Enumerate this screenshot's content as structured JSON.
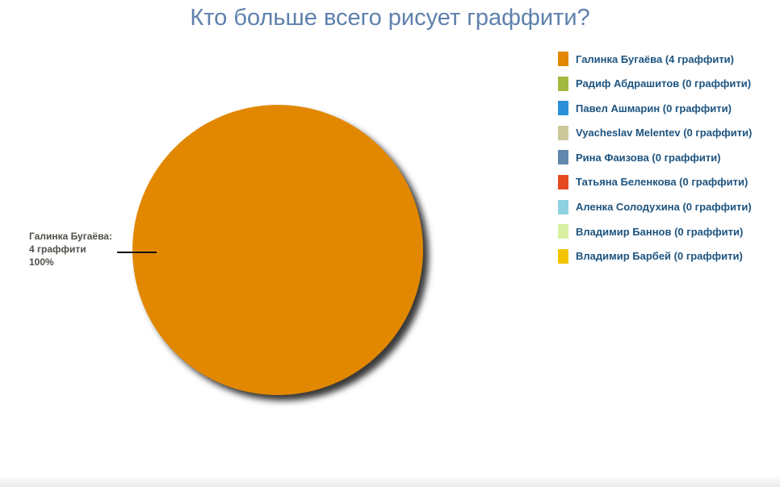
{
  "page": {
    "title": "Кто больше всего рисует граффити?"
  },
  "chart_data": {
    "type": "pie",
    "title": "Кто больше всего рисует граффити?",
    "unit": "граффити",
    "legend_position": "right",
    "total": 4,
    "series": [
      {
        "name": "Галинка Бугаёва",
        "value": 4,
        "percent": 100,
        "color": "#E28800"
      },
      {
        "name": "Радиф Абдрашитов",
        "value": 0,
        "percent": 0,
        "color": "#A4B93F"
      },
      {
        "name": "Павел Ашмарин",
        "value": 0,
        "percent": 0,
        "color": "#2B90D9"
      },
      {
        "name": "Vyacheslav Melentev",
        "value": 0,
        "percent": 0,
        "color": "#CDC89B"
      },
      {
        "name": "Рина Фаизова",
        "value": 0,
        "percent": 0,
        "color": "#6187AD"
      },
      {
        "name": "Татьяна Беленкова",
        "value": 0,
        "percent": 0,
        "color": "#E54A21"
      },
      {
        "name": "Аленка Солодухина",
        "value": 0,
        "percent": 0,
        "color": "#8ED1E1"
      },
      {
        "name": "Владимир Баннов",
        "value": 0,
        "percent": 0,
        "color": "#D9F0A3"
      },
      {
        "name": "Владимир Барбей",
        "value": 0,
        "percent": 0,
        "color": "#F2C500"
      }
    ]
  },
  "legend": {
    "items": [
      {
        "label": "Галинка Бугаёва (4 граффити)",
        "color": "#E28800"
      },
      {
        "label": "Радиф Абдрашитов (0 граффити)",
        "color": "#A4B93F"
      },
      {
        "label": "Павел Ашмарин (0 граффити)",
        "color": "#2B90D9"
      },
      {
        "label": "Vyacheslav Melentev (0 граффити)",
        "color": "#CDC89B"
      },
      {
        "label": "Рина Фаизова (0 граффити)",
        "color": "#6187AD"
      },
      {
        "label": "Татьяна Беленкова (0 граффити)",
        "color": "#E54A21"
      },
      {
        "label": "Аленка Солодухина (0 граффити)",
        "color": "#8ED1E1"
      },
      {
        "label": "Владимир Баннов (0 граффити)",
        "color": "#D9F0A3"
      },
      {
        "label": "Владимир Барбей (0 граффити)",
        "color": "#F2C500"
      }
    ]
  },
  "slice_label": {
    "name": "Галинка Бугаёва:",
    "value": "4 граффити",
    "percent": "100%"
  },
  "colors": {
    "title_text": "#5E81AD",
    "legend_text": "#1D5480",
    "slice_label_text": "#504F49",
    "pie_shadow": "rgba(0,0,0,0.78)"
  }
}
